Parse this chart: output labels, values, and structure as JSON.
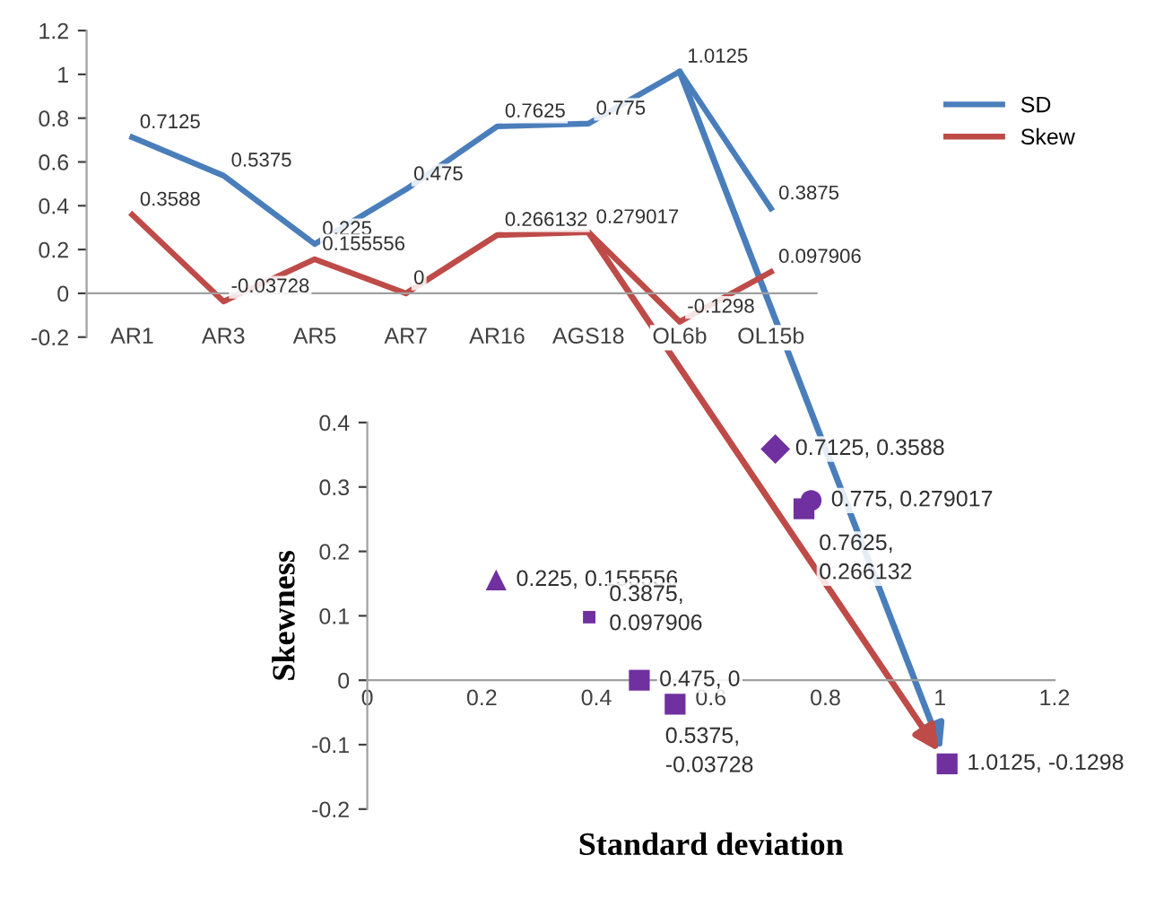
{
  "chart_data": [
    {
      "type": "line",
      "categories": [
        "AR1",
        "AR3",
        "AR5",
        "AR7",
        "AR16",
        "AGS18",
        "OL6b",
        "OL15b"
      ],
      "series": [
        {
          "name": "SD",
          "color": "#4a7ebb",
          "values": [
            0.7125,
            0.5375,
            0.225,
            0.475,
            0.7625,
            0.775,
            1.0125,
            0.3875
          ]
        },
        {
          "name": "Skew",
          "color": "#be4b48",
          "values": [
            0.3588,
            -0.03728,
            0.155556,
            0,
            0.266132,
            0.279017,
            -0.1298,
            0.097906
          ]
        }
      ],
      "ylim": [
        -0.2,
        1.2
      ],
      "yticks": [
        -0.2,
        0,
        0.2,
        0.4,
        0.6,
        0.8,
        1,
        1.2
      ],
      "data_labels": true,
      "legend": "right",
      "grid": false,
      "marker": "none",
      "line_style": "solid"
    },
    {
      "type": "scatter",
      "xlabel": "Standard deviation",
      "ylabel": "Skewness",
      "series": [
        {
          "x": [
            0.7125
          ],
          "values": [
            0.3588
          ],
          "marker": "diamond",
          "color": "#7030a0",
          "value_labels": [
            "0.7125, 0.3588"
          ]
        },
        {
          "x": [
            0.5375
          ],
          "values": [
            -0.03728
          ],
          "marker": "square",
          "color": "#7030a0",
          "value_labels": [
            "0.5375,\n-0.03728"
          ]
        },
        {
          "x": [
            0.225
          ],
          "values": [
            0.155556
          ],
          "marker": "triangle",
          "color": "#7030a0",
          "value_labels": [
            "0.225, 0.155556"
          ]
        },
        {
          "x": [
            0.475
          ],
          "values": [
            0
          ],
          "marker": "square",
          "color": "#7030a0",
          "value_labels": [
            "0.475, 0"
          ]
        },
        {
          "x": [
            0.7625
          ],
          "values": [
            0.266132
          ],
          "marker": "square",
          "color": "#7030a0",
          "value_labels": [
            "0.7625,\n0.266132"
          ]
        },
        {
          "x": [
            0.775
          ],
          "values": [
            0.279017
          ],
          "marker": "circle",
          "color": "#7030a0",
          "value_labels": [
            "0.775, 0.279017"
          ]
        },
        {
          "x": [
            1.0125
          ],
          "values": [
            -0.1298
          ],
          "marker": "square",
          "color": "#7030a0",
          "value_labels": [
            "1.0125, -0.1298"
          ]
        },
        {
          "x": [
            0.3875
          ],
          "values": [
            0.097906
          ],
          "marker": "square",
          "color": "#7030a0",
          "value_labels": [
            "0.3875,\n0.097906"
          ]
        }
      ],
      "xlim": [
        0,
        1.2
      ],
      "xticks": [
        0,
        0.2,
        0.4,
        0.6,
        0.8,
        1,
        1.2
      ],
      "ylim": [
        -0.2,
        0.4
      ],
      "yticks": [
        -0.2,
        -0.1,
        0,
        0.1,
        0.2,
        0.3,
        0.4
      ],
      "grid": false
    }
  ]
}
